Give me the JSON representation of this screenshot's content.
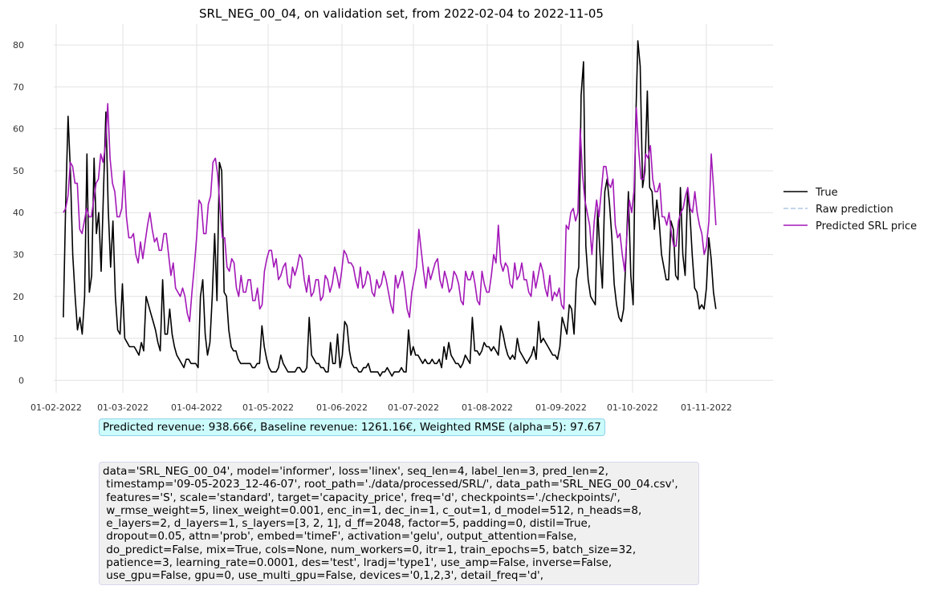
{
  "chart_data": {
    "type": "line",
    "title": "SRL_NEG_00_04, on validation set, from 2022-02-04 to 2022-11-05",
    "xlabel": "",
    "ylabel": "",
    "x_start": "2022-02-04",
    "x_end": "2022-11-05",
    "ylim": [
      -3,
      85
    ],
    "yticks": [
      0,
      10,
      20,
      30,
      40,
      50,
      60,
      70,
      80
    ],
    "xticks": [
      "01-02-2022",
      "01-03-2022",
      "01-04-2022",
      "01-05-2022",
      "01-06-2022",
      "01-07-2022",
      "01-08-2022",
      "01-09-2022",
      "01-10-2022",
      "01-11-2022"
    ],
    "grid": true,
    "legend_position": "right",
    "series": [
      {
        "name": "True",
        "color": "#000000",
        "style": "solid",
        "values": [
          15,
          42,
          63,
          50,
          30,
          20,
          12,
          15,
          11,
          20,
          54,
          21,
          25,
          53,
          35,
          40,
          26,
          45,
          64,
          41,
          27,
          38,
          20,
          12,
          11,
          23,
          10,
          9,
          8,
          8,
          8,
          7,
          6,
          9,
          7,
          20,
          18,
          16,
          14,
          12,
          9,
          7,
          24,
          11,
          11,
          17,
          11,
          8,
          6,
          5,
          4,
          3,
          5,
          5,
          4,
          4,
          4,
          3,
          20,
          24,
          11,
          6,
          9,
          20,
          35,
          19,
          52,
          50,
          21,
          20,
          12,
          8,
          7,
          7,
          5,
          4,
          4,
          4,
          4,
          4,
          3,
          3,
          4,
          4,
          13,
          8,
          5,
          3,
          2,
          2,
          2,
          3,
          6,
          4,
          3,
          2,
          2,
          2,
          2,
          3,
          3,
          2,
          2,
          3,
          15,
          6,
          5,
          4,
          4,
          3,
          3,
          2,
          2,
          9,
          4,
          4,
          11,
          3,
          6,
          14,
          13,
          7,
          4,
          3,
          3,
          2,
          2,
          3,
          3,
          4,
          2,
          2,
          2,
          2,
          1,
          2,
          2,
          3,
          2,
          1,
          2,
          2,
          2,
          3,
          2,
          2,
          12,
          6,
          8,
          6,
          6,
          5,
          4,
          5,
          4,
          4,
          5,
          4,
          4,
          5,
          3,
          8,
          5,
          9,
          6,
          5,
          4,
          4,
          3,
          4,
          6,
          5,
          4,
          15,
          7,
          7,
          6,
          7,
          9,
          8,
          8,
          7,
          8,
          7,
          6,
          13,
          11,
          8,
          6,
          5,
          6,
          5,
          10,
          7,
          6,
          5,
          4,
          5,
          6,
          8,
          5,
          14,
          9,
          10,
          9,
          8,
          7,
          6,
          6,
          5,
          8,
          15,
          13,
          11,
          18,
          17,
          11,
          24,
          27,
          68,
          76,
          32,
          24,
          20,
          19,
          18,
          41,
          30,
          22,
          45,
          48,
          42,
          34,
          23,
          18,
          15,
          14,
          17,
          30,
          45,
          25,
          18,
          60,
          81,
          75,
          46,
          50,
          69,
          46,
          45,
          36,
          43,
          38,
          30,
          27,
          24,
          24,
          38,
          36,
          25,
          24,
          46,
          30,
          25,
          45,
          40,
          30,
          22,
          21,
          17,
          18,
          17,
          22,
          34,
          29,
          21,
          17
        ]
      },
      {
        "name": "Raw prediction",
        "color": "#aec7e8",
        "style": "dashed",
        "values": []
      },
      {
        "name": "Predicted SRL price",
        "color": "#a318b8",
        "style": "solid",
        "values": [
          40,
          41,
          44,
          52,
          51,
          47,
          47,
          36,
          35,
          38,
          41,
          39,
          39,
          43,
          47,
          48,
          54,
          52,
          56,
          66,
          53,
          47,
          45,
          39,
          39,
          41,
          50,
          39,
          34,
          34,
          35,
          30,
          28,
          33,
          29,
          33,
          37,
          40,
          36,
          33,
          34,
          31,
          31,
          35,
          35,
          30,
          25,
          28,
          22,
          21,
          20,
          22,
          20,
          16,
          14,
          21,
          27,
          34,
          43,
          42,
          35,
          35,
          42,
          44,
          52,
          53,
          49,
          41,
          34,
          34,
          27,
          26,
          29,
          28,
          22,
          20,
          25,
          21,
          21,
          24,
          24,
          19,
          19,
          22,
          17,
          18,
          26,
          29,
          31,
          31,
          27,
          29,
          24,
          25,
          27,
          28,
          23,
          22,
          27,
          25,
          27,
          30,
          29,
          24,
          21,
          25,
          20,
          21,
          24,
          24,
          19,
          20,
          25,
          24,
          21,
          23,
          27,
          25,
          22,
          26,
          31,
          30,
          28,
          28,
          27,
          24,
          22,
          27,
          22,
          23,
          26,
          25,
          21,
          20,
          24,
          22,
          23,
          26,
          24,
          21,
          18,
          16,
          25,
          22,
          24,
          26,
          22,
          17,
          15,
          21,
          24,
          27,
          36,
          31,
          26,
          22,
          27,
          24,
          26,
          28,
          29,
          24,
          22,
          26,
          24,
          21,
          22,
          26,
          25,
          23,
          19,
          18,
          26,
          24,
          24,
          26,
          23,
          19,
          18,
          26,
          23,
          21,
          21,
          25,
          30,
          28,
          37,
          28,
          26,
          28,
          27,
          23,
          22,
          28,
          24,
          25,
          28,
          24,
          24,
          21,
          20,
          26,
          22,
          25,
          28,
          26,
          22,
          20,
          25,
          19,
          21,
          20,
          22,
          18,
          17,
          37,
          36,
          40,
          41,
          38,
          40,
          60,
          49,
          43,
          40,
          37,
          30,
          38,
          43,
          39,
          45,
          51,
          51,
          47,
          46,
          48,
          37,
          34,
          35,
          30,
          26,
          35,
          43,
          40,
          45,
          65,
          55,
          48,
          48,
          54,
          53,
          56,
          48,
          45,
          45,
          47,
          39,
          39,
          37,
          40,
          35,
          32,
          32,
          38,
          40,
          41,
          44,
          46,
          41,
          40,
          45,
          40,
          37,
          35,
          30,
          32,
          38,
          54,
          46,
          37
        ]
      }
    ]
  },
  "metrics_text": "Predicted revenue: 938.66€, Baseline revenue: 1261.16€, Weighted RMSE (alpha=5): 97.67",
  "config_text": "data='SRL_NEG_00_04', model='informer', loss='linex', seq_len=4, label_len=3, pred_len=2,\n timestamp='09-05-2023_12-46-07', root_path='./data/processed/SRL/', data_path='SRL_NEG_00_04.csv',\n features='S', scale='standard', target='capacity_price', freq='d', checkpoints='./checkpoints/',\n w_rmse_weight=5, linex_weight=0.001, enc_in=1, dec_in=1, c_out=1, d_model=512, n_heads=8,\n e_layers=2, d_layers=1, s_layers=[3, 2, 1], d_ff=2048, factor=5, padding=0, distil=True,\n dropout=0.05, attn='prob', embed='timeF', activation='gelu', output_attention=False,\n do_predict=False, mix=True, cols=None, num_workers=0, itr=1, train_epochs=5, batch_size=32,\n patience=3, learning_rate=0.0001, des='test', lradj='type1', use_amp=False, inverse=False,\n use_gpu=False, gpu=0, use_multi_gpu=False, devices='0,1,2,3', detail_freq='d',"
}
